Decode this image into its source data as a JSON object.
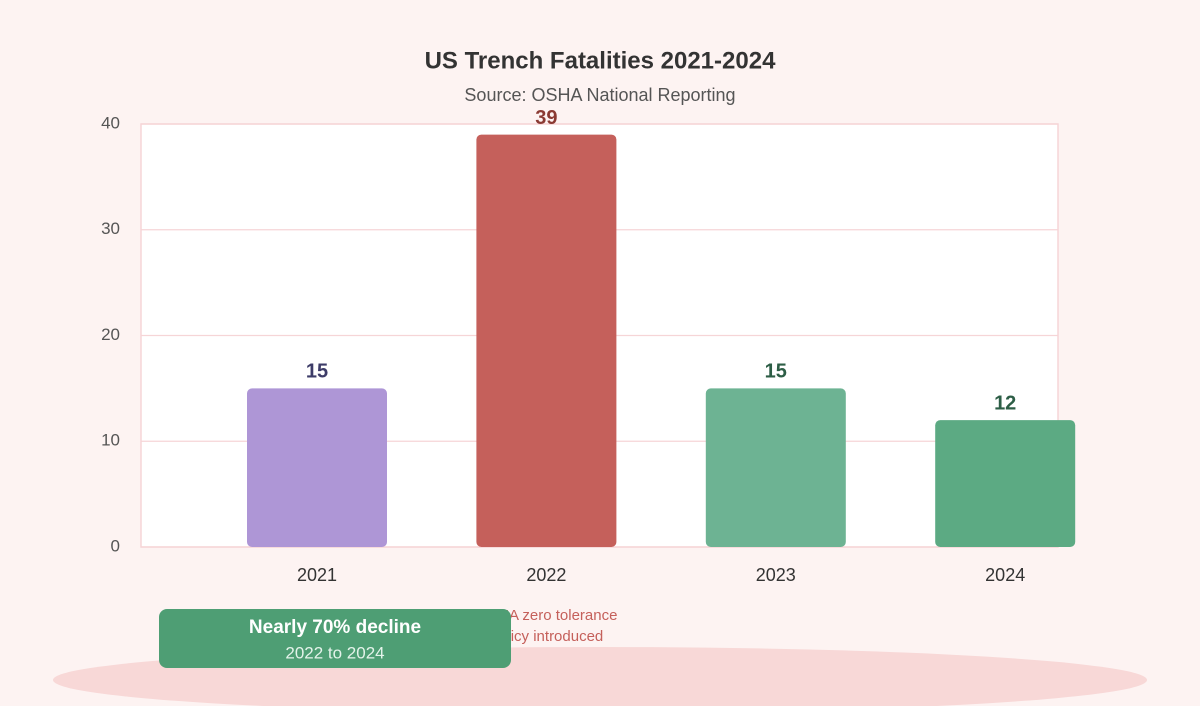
{
  "chart_data": {
    "type": "bar",
    "title": "US Trench Fatalities 2021-2024",
    "subtitle": "Source: OSHA National Reporting",
    "categories": [
      "2021",
      "2022",
      "2023",
      "2024"
    ],
    "values": [
      15,
      39,
      15,
      12
    ],
    "colors": [
      "#ae96d6",
      "#c5605b",
      "#6db393",
      "#5caa83"
    ],
    "label_colors": [
      "#3d3c68",
      "#8b3a33",
      "#2d5e46",
      "#2d5e46"
    ],
    "ylim": [
      0,
      40
    ],
    "yticks": [
      0,
      10,
      20,
      30,
      40
    ],
    "grid": true,
    "annotations": {
      "policy": [
        "OSHA zero tolerance",
        "policy introduced"
      ],
      "callout_title": "Nearly 70% decline",
      "callout_subtitle": "2022 to 2024"
    }
  }
}
